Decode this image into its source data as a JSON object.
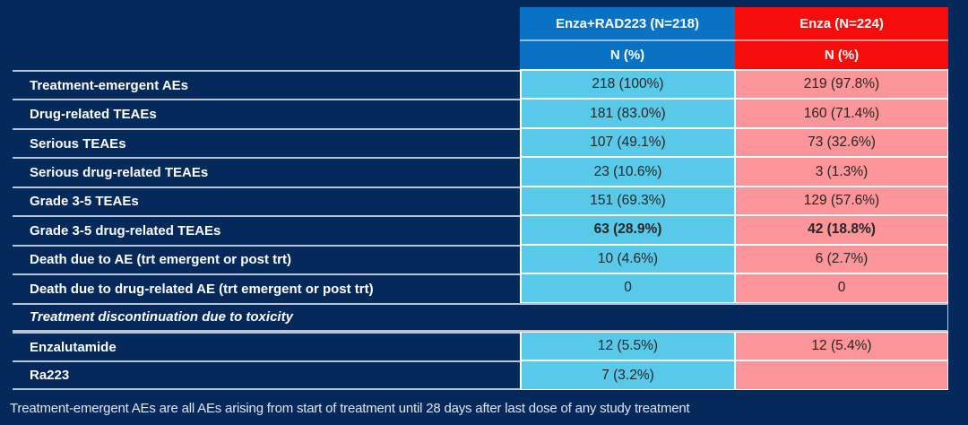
{
  "table": {
    "columns": [
      {
        "header": "Enza+RAD223 (N=218)",
        "subheader": "N (%)"
      },
      {
        "header": "Enza (N=224)",
        "subheader": "N (%)"
      }
    ],
    "rows": [
      {
        "type": "data",
        "label": "Treatment-emergent AEs",
        "values": [
          "218 (100%)",
          "219 (97.8%)"
        ],
        "bold": false
      },
      {
        "type": "data",
        "label": "Drug-related TEAEs",
        "values": [
          "181 (83.0%)",
          "160 (71.4%)"
        ],
        "bold": false
      },
      {
        "type": "data",
        "label": "Serious TEAEs",
        "values": [
          "107 (49.1%)",
          "73 (32.6%)"
        ],
        "bold": false
      },
      {
        "type": "data",
        "label": "Serious drug-related TEAEs",
        "values": [
          "23 (10.6%)",
          "3 (1.3%)"
        ],
        "bold": false
      },
      {
        "type": "data",
        "label": "Grade 3-5 TEAEs",
        "values": [
          "151 (69.3%)",
          "129 (57.6%)"
        ],
        "bold": false
      },
      {
        "type": "data",
        "label": "Grade 3-5 drug-related TEAEs",
        "values": [
          "63 (28.9%)",
          "42 (18.8%)"
        ],
        "bold": true
      },
      {
        "type": "data",
        "label": "Death due to AE (trt emergent or post trt)",
        "values": [
          "10 (4.6%)",
          "6 (2.7%)"
        ],
        "bold": false
      },
      {
        "type": "data",
        "label": "Death due to drug-related AE (trt emergent or post trt)",
        "values": [
          "0",
          "0"
        ],
        "bold": false
      },
      {
        "type": "section",
        "label": "Treatment discontinuation due to toxicity"
      },
      {
        "type": "data",
        "label": "Enzalutamide",
        "values": [
          "12 (5.5%)",
          "12 (5.4%)"
        ],
        "bold": false
      },
      {
        "type": "data",
        "label": "Ra223",
        "values": [
          "7 (3.2%)",
          ""
        ],
        "bold": false
      }
    ]
  },
  "footnote": "Treatment-emergent AEs are all AEs arising from start of treatment until 28 days after last dose of any study treatment",
  "colors": {
    "background": "#06295c",
    "header-blue": "#0a72c4",
    "header-red": "#f70c0c",
    "cell-cyan": "#58c9e8",
    "cell-pink": "#fb9599",
    "grid-line": "#ffffff",
    "value-text": "#262626",
    "label-text": "#ffffff"
  }
}
